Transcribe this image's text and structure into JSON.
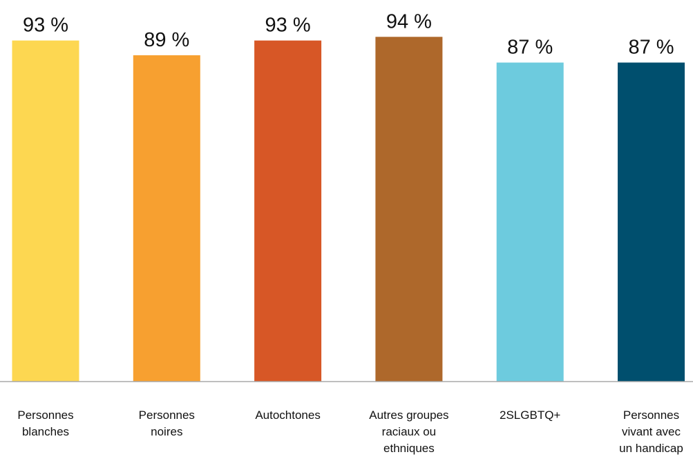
{
  "chart_data": {
    "type": "bar",
    "categories": [
      [
        "Personnes",
        "blanches"
      ],
      [
        "Personnes",
        "noires"
      ],
      [
        "Autochtones"
      ],
      [
        "Autres groupes",
        "raciaux ou",
        "ethniques"
      ],
      [
        "2SLGBTQ+"
      ],
      [
        "Personnes",
        "vivant avec",
        "un handicap"
      ]
    ],
    "values": [
      93,
      89,
      93,
      94,
      87,
      87
    ],
    "value_labels": [
      "93 %",
      "89 %",
      "93 %",
      "94 %",
      "87 %",
      "87 %"
    ],
    "colors": [
      "#FDD751",
      "#F7A030",
      "#D75726",
      "#AE682B",
      "#6DCBDE",
      "#004F6E"
    ],
    "ylim": [
      0,
      100
    ],
    "grid": false,
    "legend": "none"
  }
}
